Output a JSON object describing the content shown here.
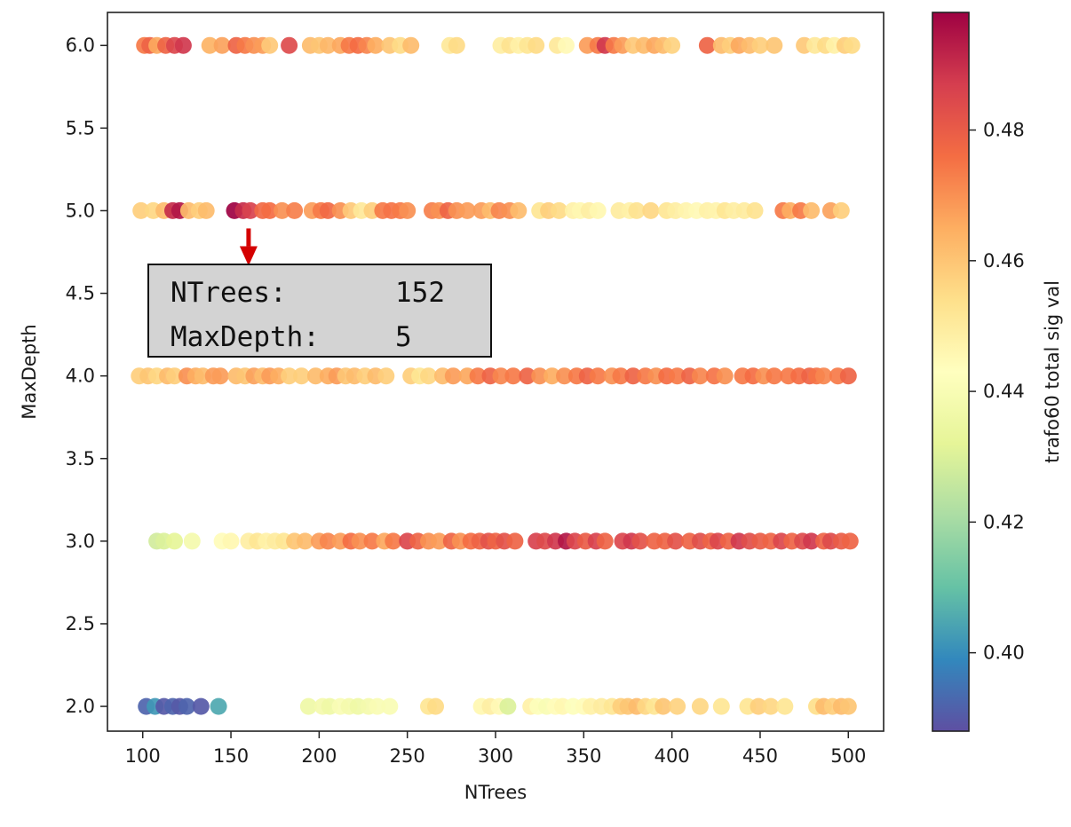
{
  "chart_data": {
    "type": "scatter",
    "xlabel": "NTrees",
    "ylabel": "MaxDepth",
    "xlim": [
      80,
      520
    ],
    "ylim": [
      1.85,
      6.2
    ],
    "xticks": [
      "100",
      "150",
      "200",
      "250",
      "300",
      "350",
      "400",
      "450",
      "500"
    ],
    "yticks": [
      "2.0",
      "2.5",
      "3.0",
      "3.5",
      "4.0",
      "4.5",
      "5.0",
      "5.5",
      "6.0"
    ],
    "grid": false,
    "colorbar": {
      "label": "trafo60 total sig val",
      "range": [
        0.388,
        0.498
      ],
      "ticks": [
        "0.40",
        "0.42",
        "0.44",
        "0.46",
        "0.48"
      ],
      "colormap": "Spectral_r"
    },
    "annotation": {
      "label_ntrees": "NTrees:",
      "value_ntrees": "152",
      "label_maxdepth": "MaxDepth:",
      "value_maxdepth": "5",
      "target_x": 160,
      "target_y": 5.0,
      "arrow_color": "#d40000"
    },
    "points": [
      [
        101,
        6,
        0.474
      ],
      [
        104,
        6,
        0.478
      ],
      [
        108,
        6,
        0.466
      ],
      [
        113,
        6,
        0.478
      ],
      [
        118,
        6,
        0.485
      ],
      [
        123,
        6,
        0.488
      ],
      [
        138,
        6,
        0.464
      ],
      [
        145,
        6,
        0.467
      ],
      [
        153,
        6,
        0.478
      ],
      [
        158,
        6,
        0.474
      ],
      [
        163,
        6,
        0.47
      ],
      [
        168,
        6,
        0.468
      ],
      [
        172,
        6,
        0.459
      ],
      [
        183,
        6,
        0.484
      ],
      [
        195,
        6,
        0.462
      ],
      [
        200,
        6,
        0.46
      ],
      [
        205,
        6,
        0.463
      ],
      [
        212,
        6,
        0.466
      ],
      [
        217,
        6,
        0.474
      ],
      [
        222,
        6,
        0.476
      ],
      [
        227,
        6,
        0.472
      ],
      [
        232,
        6,
        0.465
      ],
      [
        240,
        6,
        0.46
      ],
      [
        246,
        6,
        0.455
      ],
      [
        252,
        6,
        0.462
      ],
      [
        274,
        6,
        0.451
      ],
      [
        278,
        6,
        0.455
      ],
      [
        303,
        6,
        0.449
      ],
      [
        308,
        6,
        0.453
      ],
      [
        313,
        6,
        0.448
      ],
      [
        318,
        6,
        0.452
      ],
      [
        323,
        6,
        0.455
      ],
      [
        335,
        6,
        0.451
      ],
      [
        340,
        6,
        0.445
      ],
      [
        352,
        6,
        0.468
      ],
      [
        358,
        6,
        0.474
      ],
      [
        362,
        6,
        0.488
      ],
      [
        367,
        6,
        0.474
      ],
      [
        372,
        6,
        0.468
      ],
      [
        378,
        6,
        0.459
      ],
      [
        384,
        6,
        0.462
      ],
      [
        390,
        6,
        0.466
      ],
      [
        395,
        6,
        0.462
      ],
      [
        400,
        6,
        0.457
      ],
      [
        420,
        6,
        0.478
      ],
      [
        428,
        6,
        0.462
      ],
      [
        433,
        6,
        0.458
      ],
      [
        438,
        6,
        0.466
      ],
      [
        444,
        6,
        0.462
      ],
      [
        450,
        6,
        0.458
      ],
      [
        458,
        6,
        0.46
      ],
      [
        475,
        6,
        0.459
      ],
      [
        481,
        6,
        0.451
      ],
      [
        487,
        6,
        0.455
      ],
      [
        492,
        6,
        0.448
      ],
      [
        498,
        6,
        0.458
      ],
      [
        502,
        6,
        0.455
      ],
      [
        99,
        5,
        0.458
      ],
      [
        106,
        5,
        0.456
      ],
      [
        112,
        5,
        0.462
      ],
      [
        117,
        5,
        0.49
      ],
      [
        121,
        5,
        0.494
      ],
      [
        126,
        5,
        0.462
      ],
      [
        132,
        5,
        0.458
      ],
      [
        136,
        5,
        0.462
      ],
      [
        152,
        5,
        0.498
      ],
      [
        157,
        5,
        0.49
      ],
      [
        161,
        5,
        0.486
      ],
      [
        168,
        5,
        0.477
      ],
      [
        172,
        5,
        0.476
      ],
      [
        179,
        5,
        0.47
      ],
      [
        186,
        5,
        0.473
      ],
      [
        196,
        5,
        0.468
      ],
      [
        201,
        5,
        0.474
      ],
      [
        205,
        5,
        0.477
      ],
      [
        212,
        5,
        0.47
      ],
      [
        218,
        5,
        0.459
      ],
      [
        224,
        5,
        0.451
      ],
      [
        230,
        5,
        0.458
      ],
      [
        236,
        5,
        0.474
      ],
      [
        241,
        5,
        0.475
      ],
      [
        246,
        5,
        0.474
      ],
      [
        250,
        5,
        0.47
      ],
      [
        264,
        5,
        0.473
      ],
      [
        268,
        5,
        0.47
      ],
      [
        273,
        5,
        0.478
      ],
      [
        278,
        5,
        0.47
      ],
      [
        284,
        5,
        0.468
      ],
      [
        292,
        5,
        0.468
      ],
      [
        297,
        5,
        0.462
      ],
      [
        302,
        5,
        0.472
      ],
      [
        308,
        5,
        0.47
      ],
      [
        313,
        5,
        0.462
      ],
      [
        325,
        5,
        0.452
      ],
      [
        330,
        5,
        0.458
      ],
      [
        336,
        5,
        0.455
      ],
      [
        344,
        5,
        0.448
      ],
      [
        348,
        5,
        0.446
      ],
      [
        353,
        5,
        0.449
      ],
      [
        358,
        5,
        0.446
      ],
      [
        370,
        5,
        0.45
      ],
      [
        376,
        5,
        0.448
      ],
      [
        380,
        5,
        0.453
      ],
      [
        388,
        5,
        0.456
      ],
      [
        397,
        5,
        0.452
      ],
      [
        402,
        5,
        0.449
      ],
      [
        408,
        5,
        0.447
      ],
      [
        414,
        5,
        0.445
      ],
      [
        420,
        5,
        0.448
      ],
      [
        425,
        5,
        0.447
      ],
      [
        430,
        5,
        0.452
      ],
      [
        435,
        5,
        0.449
      ],
      [
        441,
        5,
        0.45
      ],
      [
        447,
        5,
        0.453
      ],
      [
        463,
        5,
        0.474
      ],
      [
        467,
        5,
        0.465
      ],
      [
        473,
        5,
        0.474
      ],
      [
        479,
        5,
        0.462
      ],
      [
        490,
        5,
        0.467
      ],
      [
        496,
        5,
        0.458
      ],
      [
        98,
        4,
        0.458
      ],
      [
        103,
        4,
        0.46
      ],
      [
        108,
        4,
        0.456
      ],
      [
        114,
        4,
        0.462
      ],
      [
        118,
        4,
        0.458
      ],
      [
        125,
        4,
        0.47
      ],
      [
        130,
        4,
        0.465
      ],
      [
        134,
        4,
        0.462
      ],
      [
        140,
        4,
        0.468
      ],
      [
        144,
        4,
        0.468
      ],
      [
        153,
        4,
        0.462
      ],
      [
        158,
        4,
        0.46
      ],
      [
        163,
        4,
        0.467
      ],
      [
        168,
        4,
        0.462
      ],
      [
        172,
        4,
        0.468
      ],
      [
        177,
        4,
        0.465
      ],
      [
        183,
        4,
        0.458
      ],
      [
        190,
        4,
        0.458
      ],
      [
        198,
        4,
        0.462
      ],
      [
        205,
        4,
        0.465
      ],
      [
        210,
        4,
        0.468
      ],
      [
        215,
        4,
        0.46
      ],
      [
        220,
        4,
        0.462
      ],
      [
        226,
        4,
        0.458
      ],
      [
        232,
        4,
        0.462
      ],
      [
        238,
        4,
        0.458
      ],
      [
        252,
        4,
        0.458
      ],
      [
        257,
        4,
        0.452
      ],
      [
        262,
        4,
        0.456
      ],
      [
        270,
        4,
        0.462
      ],
      [
        276,
        4,
        0.468
      ],
      [
        284,
        4,
        0.466
      ],
      [
        290,
        4,
        0.474
      ],
      [
        297,
        4,
        0.478
      ],
      [
        303,
        4,
        0.472
      ],
      [
        310,
        4,
        0.474
      ],
      [
        318,
        4,
        0.478
      ],
      [
        325,
        4,
        0.47
      ],
      [
        332,
        4,
        0.465
      ],
      [
        339,
        4,
        0.47
      ],
      [
        346,
        4,
        0.474
      ],
      [
        352,
        4,
        0.478
      ],
      [
        358,
        4,
        0.474
      ],
      [
        366,
        4,
        0.47
      ],
      [
        371,
        4,
        0.474
      ],
      [
        378,
        4,
        0.478
      ],
      [
        385,
        4,
        0.474
      ],
      [
        391,
        4,
        0.47
      ],
      [
        397,
        4,
        0.476
      ],
      [
        403,
        4,
        0.474
      ],
      [
        410,
        4,
        0.478
      ],
      [
        416,
        4,
        0.472
      ],
      [
        424,
        4,
        0.475
      ],
      [
        430,
        4,
        0.47
      ],
      [
        440,
        4,
        0.474
      ],
      [
        446,
        4,
        0.476
      ],
      [
        452,
        4,
        0.47
      ],
      [
        458,
        4,
        0.474
      ],
      [
        466,
        4,
        0.474
      ],
      [
        472,
        4,
        0.476
      ],
      [
        478,
        4,
        0.478
      ],
      [
        482,
        4,
        0.475
      ],
      [
        486,
        4,
        0.472
      ],
      [
        494,
        4,
        0.474
      ],
      [
        500,
        4,
        0.478
      ],
      [
        108,
        3,
        0.428
      ],
      [
        112,
        3,
        0.43
      ],
      [
        118,
        3,
        0.432
      ],
      [
        128,
        3,
        0.438
      ],
      [
        145,
        3,
        0.444
      ],
      [
        150,
        3,
        0.446
      ],
      [
        160,
        3,
        0.449
      ],
      [
        165,
        3,
        0.452
      ],
      [
        170,
        3,
        0.448
      ],
      [
        175,
        3,
        0.45
      ],
      [
        180,
        3,
        0.452
      ],
      [
        186,
        3,
        0.46
      ],
      [
        192,
        3,
        0.462
      ],
      [
        200,
        3,
        0.468
      ],
      [
        205,
        3,
        0.472
      ],
      [
        212,
        3,
        0.468
      ],
      [
        218,
        3,
        0.476
      ],
      [
        223,
        3,
        0.47
      ],
      [
        230,
        3,
        0.474
      ],
      [
        237,
        3,
        0.466
      ],
      [
        242,
        3,
        0.474
      ],
      [
        250,
        3,
        0.485
      ],
      [
        256,
        3,
        0.478
      ],
      [
        262,
        3,
        0.47
      ],
      [
        268,
        3,
        0.468
      ],
      [
        275,
        3,
        0.478
      ],
      [
        280,
        3,
        0.47
      ],
      [
        286,
        3,
        0.476
      ],
      [
        291,
        3,
        0.478
      ],
      [
        296,
        3,
        0.482
      ],
      [
        300,
        3,
        0.478
      ],
      [
        305,
        3,
        0.482
      ],
      [
        311,
        3,
        0.478
      ],
      [
        323,
        3,
        0.486
      ],
      [
        328,
        3,
        0.484
      ],
      [
        334,
        3,
        0.488
      ],
      [
        340,
        3,
        0.494
      ],
      [
        345,
        3,
        0.485
      ],
      [
        351,
        3,
        0.48
      ],
      [
        357,
        3,
        0.486
      ],
      [
        362,
        3,
        0.478
      ],
      [
        372,
        3,
        0.485
      ],
      [
        377,
        3,
        0.488
      ],
      [
        382,
        3,
        0.482
      ],
      [
        390,
        3,
        0.478
      ],
      [
        396,
        3,
        0.478
      ],
      [
        402,
        3,
        0.482
      ],
      [
        410,
        3,
        0.478
      ],
      [
        416,
        3,
        0.483
      ],
      [
        422,
        3,
        0.478
      ],
      [
        426,
        3,
        0.485
      ],
      [
        432,
        3,
        0.478
      ],
      [
        438,
        3,
        0.488
      ],
      [
        444,
        3,
        0.483
      ],
      [
        450,
        3,
        0.48
      ],
      [
        456,
        3,
        0.478
      ],
      [
        462,
        3,
        0.485
      ],
      [
        468,
        3,
        0.478
      ],
      [
        474,
        3,
        0.484
      ],
      [
        479,
        3,
        0.488
      ],
      [
        486,
        3,
        0.478
      ],
      [
        490,
        3,
        0.484
      ],
      [
        496,
        3,
        0.48
      ],
      [
        501,
        3,
        0.478
      ],
      [
        102,
        2,
        0.392
      ],
      [
        107,
        2,
        0.402
      ],
      [
        112,
        2,
        0.39
      ],
      [
        117,
        2,
        0.392
      ],
      [
        121,
        2,
        0.39
      ],
      [
        125,
        2,
        0.392
      ],
      [
        133,
        2,
        0.39
      ],
      [
        143,
        2,
        0.405
      ],
      [
        194,
        2,
        0.436
      ],
      [
        202,
        2,
        0.438
      ],
      [
        206,
        2,
        0.436
      ],
      [
        212,
        2,
        0.44
      ],
      [
        217,
        2,
        0.438
      ],
      [
        222,
        2,
        0.436
      ],
      [
        228,
        2,
        0.438
      ],
      [
        233,
        2,
        0.44
      ],
      [
        240,
        2,
        0.44
      ],
      [
        262,
        2,
        0.452
      ],
      [
        266,
        2,
        0.455
      ],
      [
        292,
        2,
        0.446
      ],
      [
        297,
        2,
        0.449
      ],
      [
        302,
        2,
        0.445
      ],
      [
        307,
        2,
        0.43
      ],
      [
        320,
        2,
        0.448
      ],
      [
        324,
        2,
        0.442
      ],
      [
        329,
        2,
        0.44
      ],
      [
        334,
        2,
        0.444
      ],
      [
        338,
        2,
        0.446
      ],
      [
        344,
        2,
        0.442
      ],
      [
        350,
        2,
        0.444
      ],
      [
        354,
        2,
        0.448
      ],
      [
        360,
        2,
        0.45
      ],
      [
        366,
        2,
        0.452
      ],
      [
        371,
        2,
        0.458
      ],
      [
        375,
        2,
        0.46
      ],
      [
        380,
        2,
        0.462
      ],
      [
        385,
        2,
        0.456
      ],
      [
        390,
        2,
        0.452
      ],
      [
        395,
        2,
        0.46
      ],
      [
        403,
        2,
        0.457
      ],
      [
        416,
        2,
        0.456
      ],
      [
        428,
        2,
        0.452
      ],
      [
        443,
        2,
        0.452
      ],
      [
        449,
        2,
        0.458
      ],
      [
        456,
        2,
        0.456
      ],
      [
        464,
        2,
        0.452
      ],
      [
        482,
        2,
        0.454
      ],
      [
        486,
        2,
        0.462
      ],
      [
        491,
        2,
        0.458
      ],
      [
        496,
        2,
        0.462
      ],
      [
        500,
        2,
        0.46
      ]
    ]
  }
}
